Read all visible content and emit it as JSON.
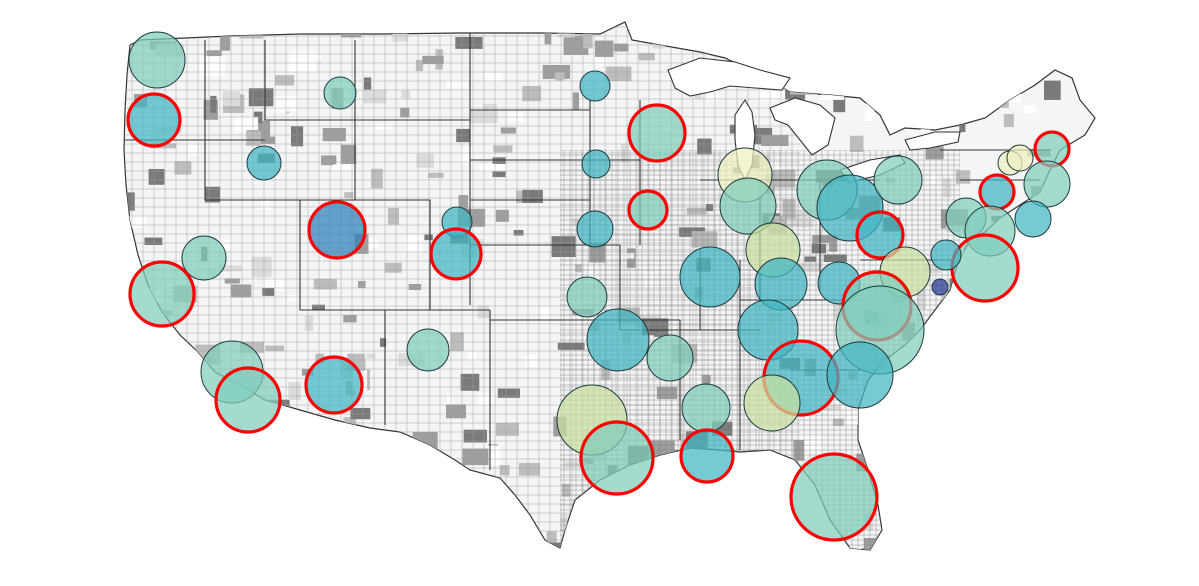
{
  "map": {
    "type": "bubble-map-over-choropleth",
    "region": "contiguous-united-states",
    "background_color": "#ffffff",
    "land_color": "#f4f5f7",
    "county_line_color": "#8c8c8c",
    "county_shade_levels": [
      "#ffffff",
      "#dcdcdc",
      "#bdbdbd",
      "#9e9e9e",
      "#7a7a7a"
    ],
    "lakes_color": "#ffffff",
    "bubble_fill_scale": {
      "light": "#f0f0c0",
      "yellow_green": "#c9e1a0",
      "mint": "#7fcdbb",
      "teal": "#41b6c4",
      "blue": "#2c7fb8",
      "navy": "#253494"
    },
    "bubble_fill_opacity": 0.72,
    "bubble_stroke_color": "#1f3a3a",
    "highlight_ring_color": "#ff0000",
    "bubbles": [
      {
        "id": "b1",
        "fill": "mint",
        "r": 28,
        "highlight": false
      },
      {
        "id": "b2",
        "fill": "teal",
        "r": 26,
        "highlight": true
      },
      {
        "id": "b3",
        "fill": "mint",
        "r": 16,
        "highlight": false
      },
      {
        "id": "b4",
        "fill": "teal",
        "r": 17,
        "highlight": false
      },
      {
        "id": "b5",
        "fill": "blue",
        "r": 28,
        "highlight": true
      },
      {
        "id": "b6",
        "fill": "teal",
        "r": 15,
        "highlight": false
      },
      {
        "id": "b7",
        "fill": "teal",
        "r": 25,
        "highlight": true
      },
      {
        "id": "b8",
        "fill": "mint",
        "r": 22,
        "highlight": false
      },
      {
        "id": "b9",
        "fill": "mint",
        "r": 32,
        "highlight": true
      },
      {
        "id": "b10",
        "fill": "mint",
        "r": 31,
        "highlight": false
      },
      {
        "id": "b11",
        "fill": "mint",
        "r": 32,
        "highlight": true
      },
      {
        "id": "b12",
        "fill": "teal",
        "r": 28,
        "highlight": true
      },
      {
        "id": "b13",
        "fill": "mint",
        "r": 21,
        "highlight": false
      },
      {
        "id": "b14",
        "fill": "teal",
        "r": 15,
        "highlight": false
      },
      {
        "id": "b15",
        "fill": "mint",
        "r": 28,
        "highlight": true
      },
      {
        "id": "b16",
        "fill": "teal",
        "r": 14,
        "highlight": false
      },
      {
        "id": "b17",
        "fill": "mint",
        "r": 19,
        "highlight": true
      },
      {
        "id": "b18",
        "fill": "teal",
        "r": 18,
        "highlight": false
      },
      {
        "id": "b19",
        "fill": "mint",
        "r": 20,
        "highlight": false
      },
      {
        "id": "b20",
        "fill": "teal",
        "r": 30,
        "highlight": false
      },
      {
        "id": "b21",
        "fill": "yellow_green",
        "r": 35,
        "highlight": false
      },
      {
        "id": "b22",
        "fill": "mint",
        "r": 36,
        "highlight": true
      },
      {
        "id": "b23",
        "fill": "mint",
        "r": 23,
        "highlight": false
      },
      {
        "id": "b24",
        "fill": "teal",
        "r": 31,
        "highlight": false
      },
      {
        "id": "b25",
        "fill": "mint",
        "r": 24,
        "highlight": false
      },
      {
        "id": "b26",
        "fill": "teal",
        "r": 26,
        "highlight": true
      },
      {
        "id": "b27",
        "fill": "light",
        "r": 27,
        "highlight": false
      },
      {
        "id": "b28",
        "fill": "mint",
        "r": 28,
        "highlight": false
      },
      {
        "id": "b29",
        "fill": "yellow_green",
        "r": 27,
        "highlight": false
      },
      {
        "id": "b30",
        "fill": "teal",
        "r": 26,
        "highlight": false
      },
      {
        "id": "b31",
        "fill": "teal",
        "r": 30,
        "highlight": false
      },
      {
        "id": "b32",
        "fill": "mint",
        "r": 30,
        "highlight": false
      },
      {
        "id": "b33",
        "fill": "teal",
        "r": 37,
        "highlight": true
      },
      {
        "id": "b34",
        "fill": "yellow_green",
        "r": 28,
        "highlight": false
      },
      {
        "id": "b35",
        "fill": "teal",
        "r": 33,
        "highlight": false
      },
      {
        "id": "b36",
        "fill": "teal",
        "r": 21,
        "highlight": false
      },
      {
        "id": "b37",
        "fill": "teal",
        "r": 23,
        "highlight": true
      },
      {
        "id": "b38",
        "fill": "yellow_green",
        "r": 25,
        "highlight": false
      },
      {
        "id": "b39",
        "fill": "mint",
        "r": 34,
        "highlight": true
      },
      {
        "id": "b40",
        "fill": "mint",
        "r": 44,
        "highlight": false
      },
      {
        "id": "b41",
        "fill": "teal",
        "r": 33,
        "highlight": false
      },
      {
        "id": "b42",
        "fill": "mint",
        "r": 43,
        "highlight": true
      },
      {
        "id": "b43",
        "fill": "mint",
        "r": 24,
        "highlight": false
      },
      {
        "id": "b44",
        "fill": "light",
        "r": 12,
        "highlight": false
      },
      {
        "id": "b45",
        "fill": "light",
        "r": 13,
        "highlight": false
      },
      {
        "id": "b46",
        "fill": "mint",
        "r": 17,
        "highlight": true
      },
      {
        "id": "b47",
        "fill": "teal",
        "r": 17,
        "highlight": true
      },
      {
        "id": "b48",
        "fill": "mint",
        "r": 23,
        "highlight": false
      },
      {
        "id": "b49",
        "fill": "mint",
        "r": 20,
        "highlight": false
      },
      {
        "id": "b50",
        "fill": "teal",
        "r": 18,
        "highlight": false
      },
      {
        "id": "b51",
        "fill": "mint",
        "r": 25,
        "highlight": false
      },
      {
        "id": "b52",
        "fill": "mint",
        "r": 33,
        "highlight": true
      },
      {
        "id": "b53",
        "fill": "teal",
        "r": 15,
        "highlight": false
      },
      {
        "id": "b54",
        "fill": "navy",
        "r": 8,
        "highlight": false
      }
    ]
  }
}
